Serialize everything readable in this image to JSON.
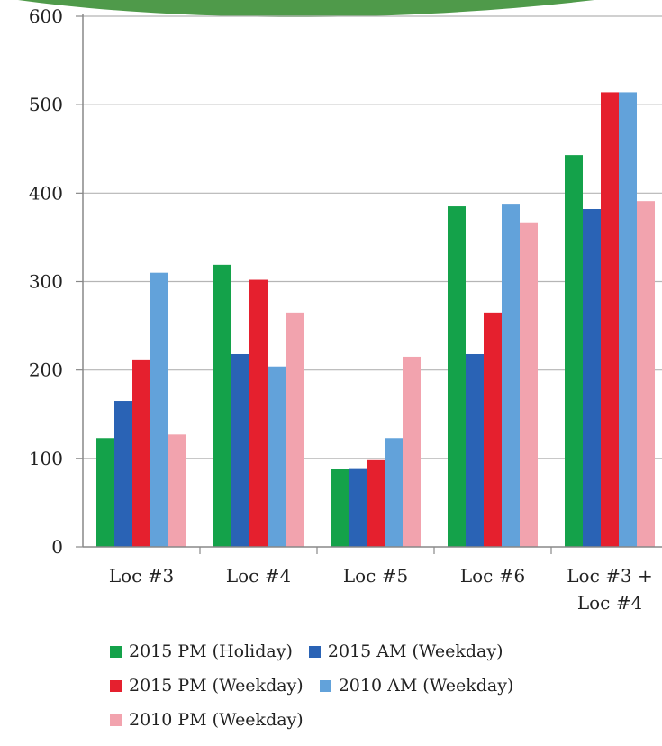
{
  "chart_data": {
    "type": "bar",
    "title": "",
    "xlabel": "",
    "ylabel": "",
    "ylim": [
      0,
      600
    ],
    "yticks": [
      0,
      100,
      200,
      300,
      400,
      500,
      600
    ],
    "grid": true,
    "legend_position": "bottom",
    "categories": [
      "Loc #3",
      "Loc #4",
      "Loc #5",
      "Loc #6",
      "Loc #3 + Loc #4"
    ],
    "category_lines": [
      [
        "Loc #3"
      ],
      [
        "Loc #4"
      ],
      [
        "Loc #5"
      ],
      [
        "Loc #6"
      ],
      [
        "Loc #3 +",
        "Loc #4"
      ]
    ],
    "series": [
      {
        "name": "2015 PM (Holiday)",
        "color": "#14a24a",
        "values": [
          123,
          319,
          88,
          385,
          443
        ]
      },
      {
        "name": "2015 AM (Weekday)",
        "color": "#2a63b5",
        "values": [
          165,
          218,
          89,
          218,
          382
        ]
      },
      {
        "name": "2015 PM (Weekday)",
        "color": "#e5202e",
        "values": [
          211,
          302,
          98,
          265,
          514
        ]
      },
      {
        "name": "2010 AM (Weekday)",
        "color": "#62a2da",
        "values": [
          310,
          204,
          123,
          388,
          514
        ]
      },
      {
        "name": "2010 PM (Weekday)",
        "color": "#f2a3ae",
        "values": [
          127,
          265,
          215,
          367,
          391
        ]
      }
    ]
  }
}
